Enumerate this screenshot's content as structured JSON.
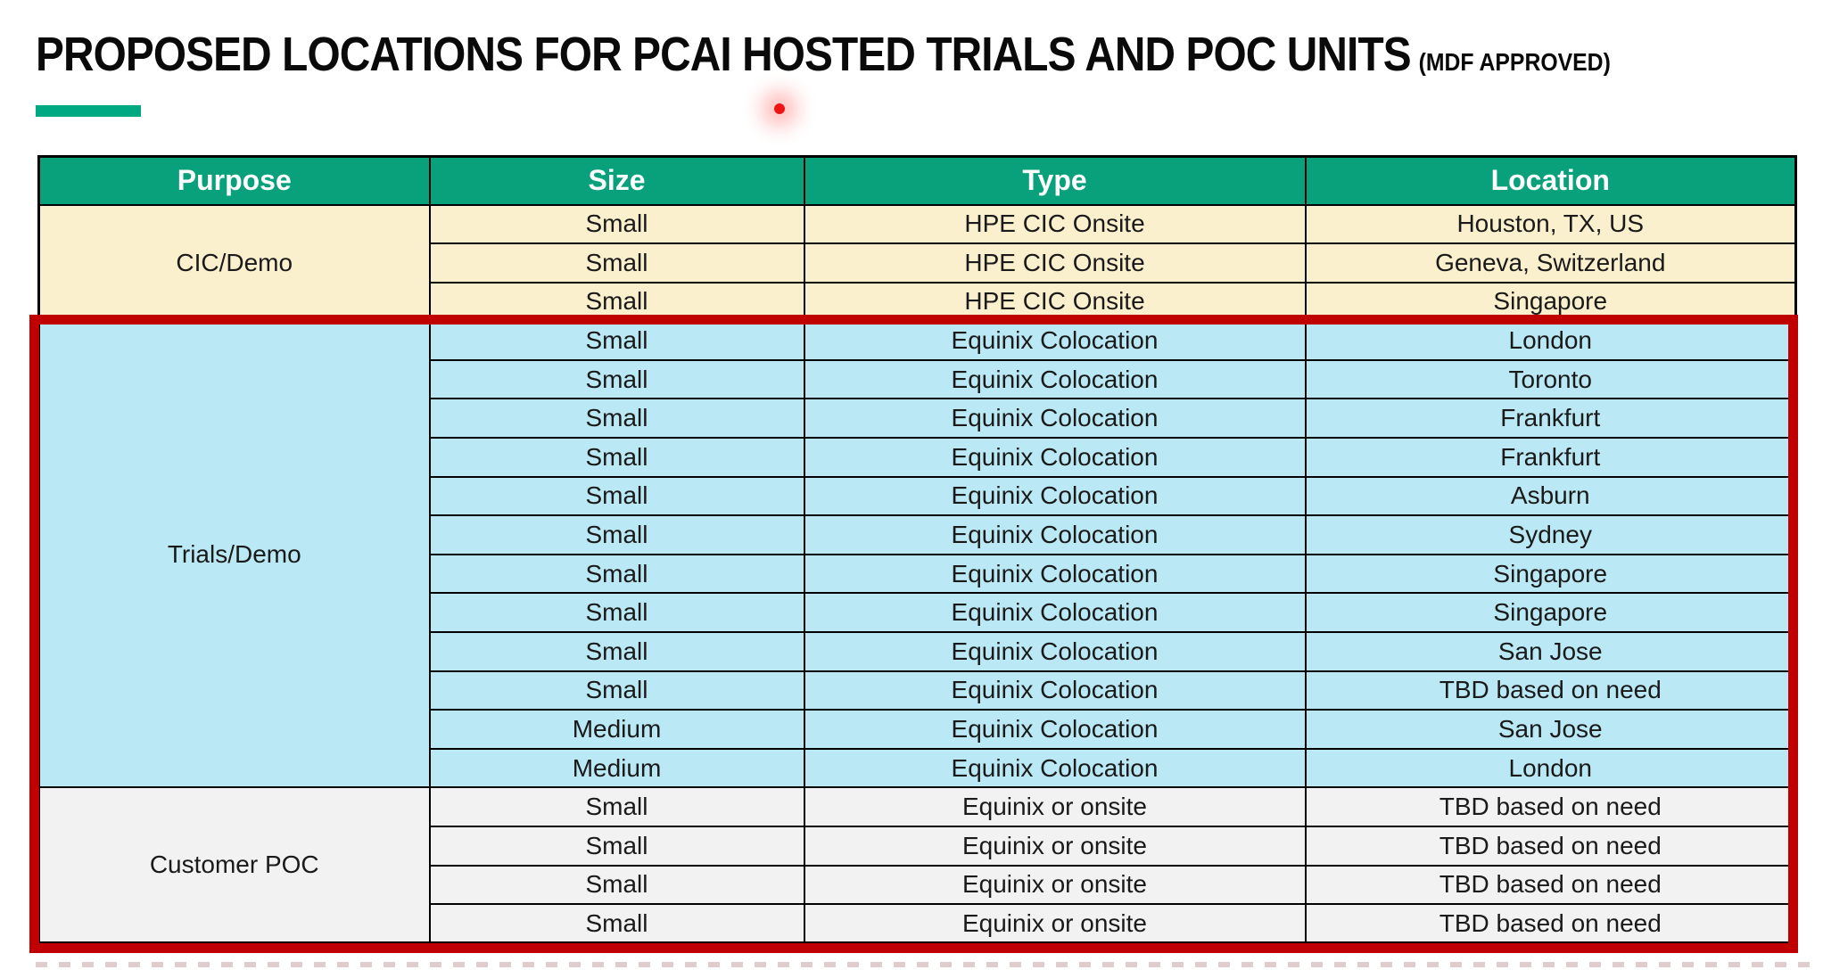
{
  "page": {
    "title": "PROPOSED LOCATIONS FOR PCAI HOSTED TRIALS AND POC UNITS",
    "title_suffix": "(MDF APPROVED)"
  },
  "colors": {
    "header_bg": "#09a17c",
    "header_text": "#ffffff",
    "cic_demo_bg": "#fbf0cd",
    "trials_demo_bg": "#bae8f4",
    "customer_poc_bg": "#f2f2f2",
    "highlight_red": "#c00000",
    "accent_green": "#01a982"
  },
  "table": {
    "columns": [
      "Purpose",
      "Size",
      "Type",
      "Location"
    ],
    "sections": [
      {
        "purpose": "CIC/Demo",
        "bg": "#fbf0cd",
        "highlighted": false,
        "rows": [
          {
            "size": "Small",
            "type": "HPE CIC Onsite",
            "location": "Houston, TX, US"
          },
          {
            "size": "Small",
            "type": "HPE CIC Onsite",
            "location": "Geneva, Switzerland"
          },
          {
            "size": "Small",
            "type": "HPE CIC Onsite",
            "location": "Singapore"
          }
        ]
      },
      {
        "purpose": "Trials/Demo",
        "bg": "#bae8f4",
        "highlighted": true,
        "rows": [
          {
            "size": "Small",
            "type": "Equinix Colocation",
            "location": "London"
          },
          {
            "size": "Small",
            "type": "Equinix Colocation",
            "location": "Toronto"
          },
          {
            "size": "Small",
            "type": "Equinix Colocation",
            "location": "Frankfurt"
          },
          {
            "size": "Small",
            "type": "Equinix Colocation",
            "location": "Frankfurt"
          },
          {
            "size": "Small",
            "type": "Equinix Colocation",
            "location": "Asburn"
          },
          {
            "size": "Small",
            "type": "Equinix Colocation",
            "location": "Sydney"
          },
          {
            "size": "Small",
            "type": "Equinix Colocation",
            "location": "Singapore"
          },
          {
            "size": "Small",
            "type": "Equinix Colocation",
            "location": "Singapore"
          },
          {
            "size": "Small",
            "type": "Equinix Colocation",
            "location": "San Jose"
          },
          {
            "size": "Small",
            "type": "Equinix Colocation",
            "location": "TBD based on need"
          },
          {
            "size": "Medium",
            "type": "Equinix Colocation",
            "location": "San Jose"
          },
          {
            "size": "Medium",
            "type": "Equinix Colocation",
            "location": "London"
          }
        ]
      },
      {
        "purpose": "Customer POC",
        "bg": "#f2f2f2",
        "highlighted": true,
        "rows": [
          {
            "size": "Small",
            "type": "Equinix or onsite",
            "location": "TBD based on need"
          },
          {
            "size": "Small",
            "type": "Equinix or onsite",
            "location": "TBD based on need"
          },
          {
            "size": "Small",
            "type": "Equinix or onsite",
            "location": "TBD based on need"
          },
          {
            "size": "Small",
            "type": "Equinix or onsite",
            "location": "TBD based on need"
          }
        ]
      }
    ]
  }
}
